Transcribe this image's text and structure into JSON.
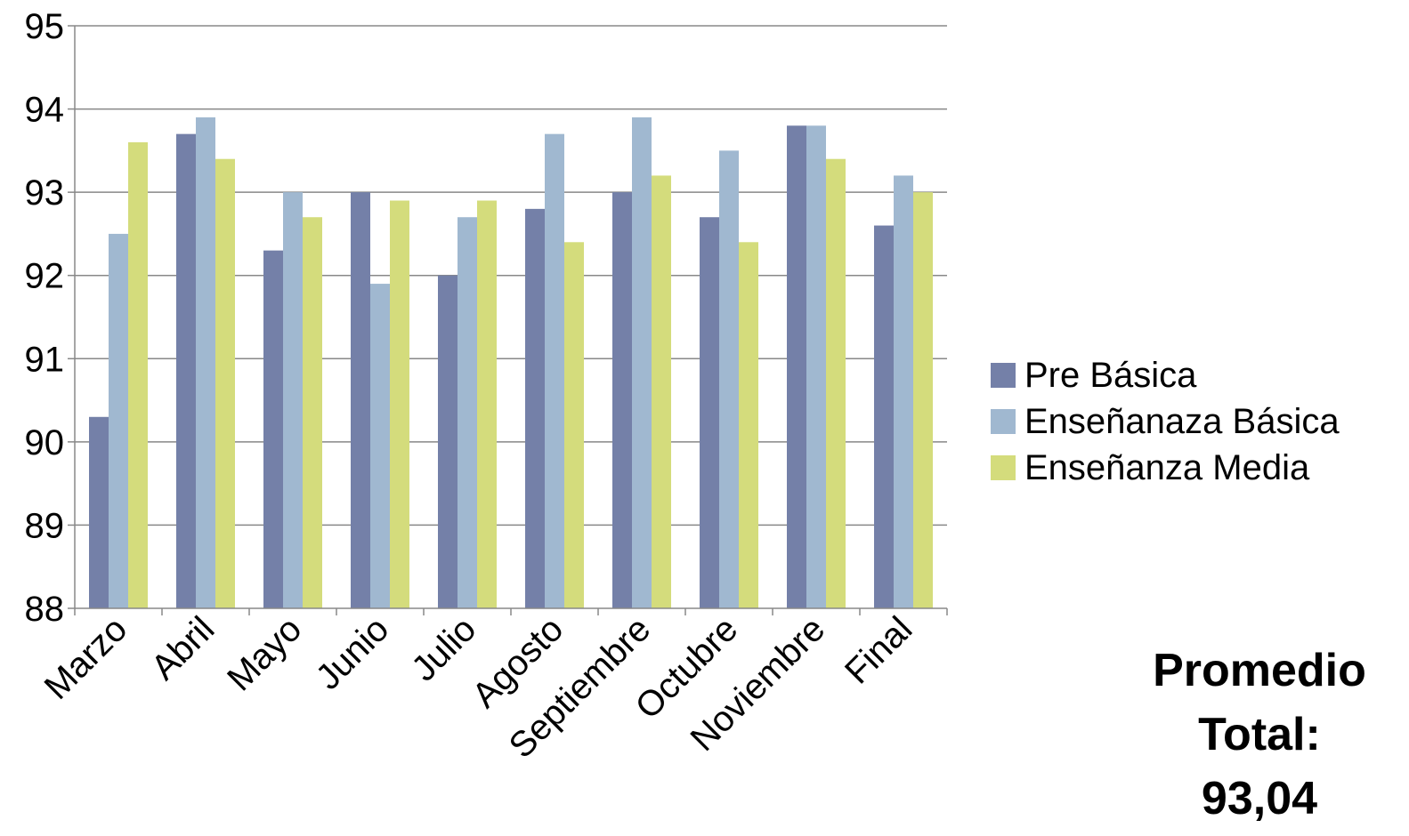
{
  "chart_data": {
    "type": "bar",
    "categories": [
      "Marzo",
      "Abril",
      "Mayo",
      "Junio",
      "Julio",
      "Agosto",
      "Septiembre",
      "Octubre",
      "Noviembre",
      "Final"
    ],
    "series": [
      {
        "name": "Pre Básica",
        "color": "#7480A8",
        "values": [
          90.3,
          93.7,
          92.3,
          93.0,
          92.0,
          92.8,
          93.0,
          92.7,
          93.8,
          92.6
        ]
      },
      {
        "name": "Enseñanaza Básica",
        "color": "#A0B8D0",
        "values": [
          92.5,
          93.9,
          93.0,
          91.9,
          92.7,
          93.7,
          93.9,
          93.5,
          93.8,
          93.2
        ]
      },
      {
        "name": "Enseñanza Media",
        "color": "#D4DC7C",
        "values": [
          93.6,
          93.4,
          92.7,
          92.9,
          92.9,
          92.4,
          93.2,
          92.4,
          93.4,
          93.0
        ]
      }
    ],
    "ylim": [
      88,
      95
    ],
    "yticks": [
      "88",
      "89",
      "90",
      "91",
      "92",
      "93",
      "94",
      "95"
    ],
    "grid": true,
    "legend_position": "right",
    "xlabel": "",
    "ylabel": "",
    "title": ""
  },
  "total": {
    "line1": "Promedio",
    "line2": "Total:",
    "value": "93,04"
  }
}
